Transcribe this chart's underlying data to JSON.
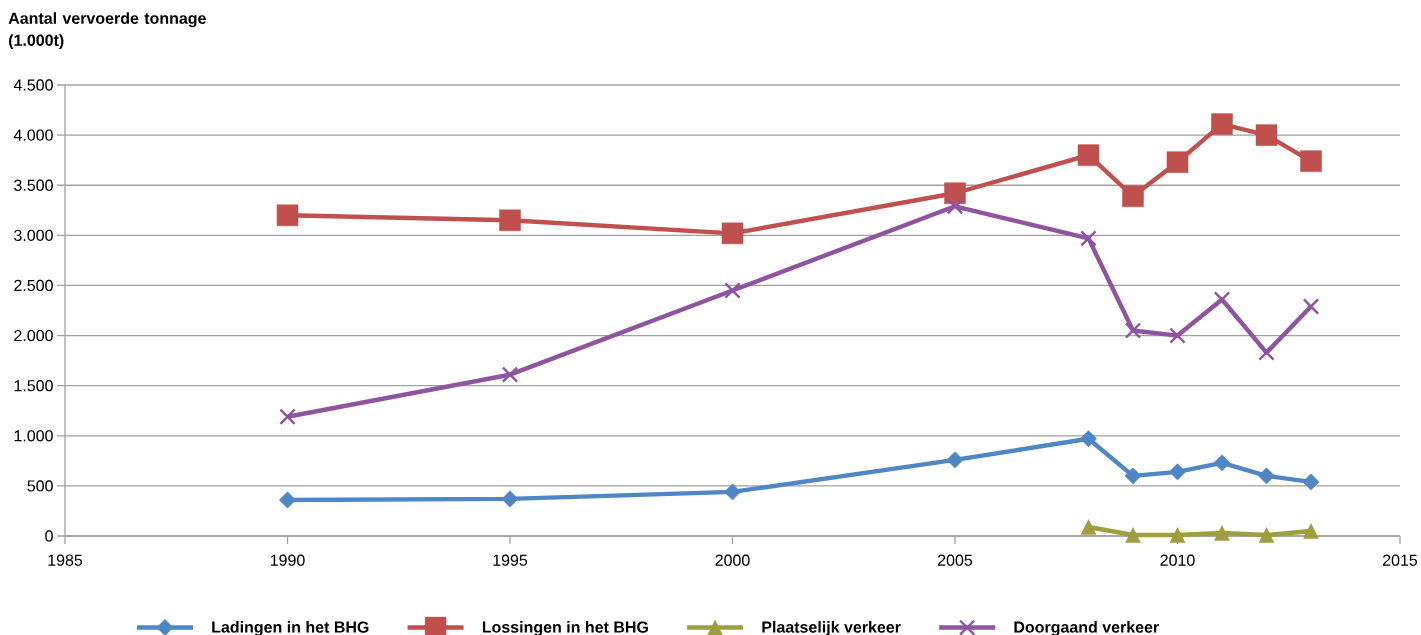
{
  "chart_data": {
    "type": "line",
    "ylabel": "Aantal vervoerde tonnage (1.000t)",
    "x": [
      1990,
      1995,
      2000,
      2005,
      2008,
      2009,
      2010,
      2011,
      2012,
      2013
    ],
    "series": [
      {
        "name": "Ladingen in het BHG",
        "color": "#4f86c6",
        "marker": "diamond",
        "values": [
          360,
          370,
          440,
          760,
          970,
          600,
          640,
          730,
          600,
          540
        ]
      },
      {
        "name": "Lossingen in het BHG",
        "color": "#c0504d",
        "marker": "square",
        "values": [
          3200,
          3150,
          3020,
          3420,
          3800,
          3390,
          3730,
          4110,
          4000,
          3740
        ]
      },
      {
        "name": "Plaatselijk verkeer",
        "color": "#9f9e3f",
        "marker": "triangle",
        "x": [
          2008,
          2009,
          2010,
          2011,
          2012,
          2013
        ],
        "values": [
          90,
          10,
          10,
          30,
          10,
          50
        ]
      },
      {
        "name": "Doorgaand verkeer",
        "color": "#8f54a0",
        "marker": "cross",
        "values": [
          1190,
          1610,
          2450,
          3290,
          2970,
          2050,
          2000,
          2360,
          1830,
          2290
        ]
      }
    ],
    "xlim": [
      1985,
      2015
    ],
    "ylim": [
      0,
      4500
    ],
    "xticks": [
      1985,
      1990,
      1995,
      2000,
      2005,
      2010,
      2015
    ],
    "yticks": [
      0,
      500,
      {
        "value": 1000,
        "label": "1.000"
      },
      {
        "value": 1500,
        "label": "1.500"
      },
      {
        "value": 2000,
        "label": "2.000"
      },
      {
        "value": 2500,
        "label": "2.500"
      },
      {
        "value": 3000,
        "label": "3.000"
      },
      {
        "value": 3500,
        "label": "3.500"
      },
      {
        "value": 4000,
        "label": "4.000"
      },
      {
        "value": 4500,
        "label": "4.500"
      }
    ],
    "grid": "y",
    "legend": "bottom",
    "line_style": "solid"
  }
}
